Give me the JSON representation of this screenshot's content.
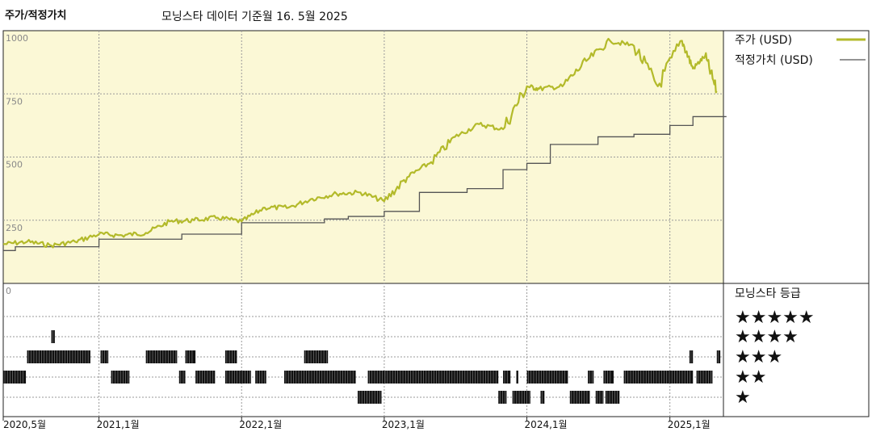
{
  "header": {
    "chart_title": "주가/적정가치",
    "subtitle": "모닝스타 데이터 기준월 16. 5월 2025"
  },
  "legend": {
    "price_label": "주가 (USD)",
    "fair_label": "적정가치 (USD)",
    "rating_title": "모닝스타 등급",
    "stars": [
      "★★★★★",
      "★★★★",
      "★★★",
      "★★",
      "★"
    ]
  },
  "colors": {
    "price": "#b3ba2a",
    "fair": "#555555",
    "plot_bg": "#fbf8d6",
    "grid": "#9a9a9a"
  },
  "chart_data": [
    {
      "type": "line",
      "title": "주가/적정가치",
      "ylim": [
        0,
        1000
      ],
      "yticks": [
        "1000",
        "750",
        "500",
        "250"
      ],
      "xticks": [
        "2020,5월",
        "2021,1월",
        "2022,1월",
        "2023,1월",
        "2024,1월",
        "2025,1월"
      ],
      "xtick_dates": [
        "2020-05",
        "2021-01",
        "2022-01",
        "2023-01",
        "2024-01",
        "2025-01"
      ],
      "x_range": [
        "2020-05",
        "2025-05"
      ],
      "series": [
        {
          "name": "주가 (USD)",
          "x": [
            "2020-05",
            "2020-07",
            "2020-09",
            "2020-11",
            "2021-01",
            "2021-03",
            "2021-05",
            "2021-07",
            "2021-09",
            "2021-11",
            "2022-01",
            "2022-03",
            "2022-05",
            "2022-07",
            "2022-09",
            "2022-11",
            "2023-01",
            "2023-03",
            "2023-05",
            "2023-07",
            "2023-09",
            "2023-11",
            "2024-01",
            "2024-02",
            "2024-04",
            "2024-06",
            "2024-08",
            "2024-10",
            "2024-12",
            "2025-02",
            "2025-03",
            "2025-04",
            "2025-05"
          ],
          "values": [
            155,
            165,
            150,
            165,
            195,
            190,
            200,
            245,
            250,
            260,
            245,
            300,
            300,
            335,
            355,
            360,
            325,
            420,
            480,
            580,
            630,
            610,
            780,
            770,
            780,
            880,
            960,
            940,
            780,
            960,
            850,
            900,
            760
          ]
        },
        {
          "name": "적정가치 (USD)",
          "x": [
            "2020-05",
            "2020-06",
            "2021-01",
            "2021-08",
            "2022-01",
            "2022-08",
            "2022-10",
            "2023-01",
            "2023-04",
            "2023-08",
            "2023-11",
            "2024-01",
            "2024-03",
            "2024-07",
            "2024-10",
            "2025-01",
            "2025-03",
            "2025-05"
          ],
          "values": [
            130,
            145,
            175,
            195,
            240,
            255,
            265,
            285,
            360,
            375,
            450,
            475,
            550,
            580,
            590,
            625,
            660,
            660
          ]
        }
      ]
    },
    {
      "type": "heatmap",
      "title": "모닝스타 등급",
      "rows": [
        "5",
        "4",
        "3",
        "2",
        "1"
      ],
      "x_range": [
        "2020-05",
        "2025-05"
      ],
      "segments": [
        {
          "stars": 4,
          "from": "2020-09-01",
          "to": "2020-09-10"
        },
        {
          "stars": 3,
          "from": "2020-07-01",
          "to": "2020-12-10"
        },
        {
          "stars": 3,
          "from": "2021-01-05",
          "to": "2021-01-25"
        },
        {
          "stars": 3,
          "from": "2021-05-01",
          "to": "2021-07-20"
        },
        {
          "stars": 3,
          "from": "2021-08-10",
          "to": "2021-09-05"
        },
        {
          "stars": 3,
          "from": "2021-11-20",
          "to": "2021-12-20"
        },
        {
          "stars": 3,
          "from": "2022-06-10",
          "to": "2022-08-10"
        },
        {
          "stars": 3,
          "from": "2025-02-20",
          "to": "2025-03-01"
        },
        {
          "stars": 3,
          "from": "2025-05-01",
          "to": "2025-05-10"
        },
        {
          "stars": 2,
          "from": "2020-05-01",
          "to": "2020-06-28"
        },
        {
          "stars": 2,
          "from": "2021-02-01",
          "to": "2021-03-20"
        },
        {
          "stars": 2,
          "from": "2021-07-25",
          "to": "2021-08-10"
        },
        {
          "stars": 2,
          "from": "2021-09-05",
          "to": "2021-10-25"
        },
        {
          "stars": 2,
          "from": "2021-11-20",
          "to": "2022-01-25"
        },
        {
          "stars": 2,
          "from": "2022-02-05",
          "to": "2022-03-05"
        },
        {
          "stars": 2,
          "from": "2022-04-20",
          "to": "2022-10-20"
        },
        {
          "stars": 2,
          "from": "2022-11-20",
          "to": "2023-01-05"
        },
        {
          "stars": 2,
          "from": "2023-01-05",
          "to": "2023-10-20"
        },
        {
          "stars": 2,
          "from": "2023-11-01",
          "to": "2023-11-20"
        },
        {
          "stars": 2,
          "from": "2023-12-05",
          "to": "2023-12-10"
        },
        {
          "stars": 2,
          "from": "2024-01-01",
          "to": "2024-04-15"
        },
        {
          "stars": 2,
          "from": "2024-06-05",
          "to": "2024-06-20"
        },
        {
          "stars": 2,
          "from": "2024-07-15",
          "to": "2024-08-10"
        },
        {
          "stars": 2,
          "from": "2024-09-05",
          "to": "2025-03-01"
        },
        {
          "stars": 2,
          "from": "2025-03-10",
          "to": "2025-04-20"
        },
        {
          "stars": 1,
          "from": "2022-10-25",
          "to": "2022-12-25"
        },
        {
          "stars": 1,
          "from": "2023-10-20",
          "to": "2023-11-10"
        },
        {
          "stars": 1,
          "from": "2023-11-25",
          "to": "2024-01-10"
        },
        {
          "stars": 1,
          "from": "2024-02-05",
          "to": "2024-02-15"
        },
        {
          "stars": 1,
          "from": "2024-04-20",
          "to": "2024-06-10"
        },
        {
          "stars": 1,
          "from": "2024-06-25",
          "to": "2024-07-15"
        },
        {
          "stars": 1,
          "from": "2024-07-20",
          "to": "2024-08-25"
        }
      ]
    }
  ]
}
